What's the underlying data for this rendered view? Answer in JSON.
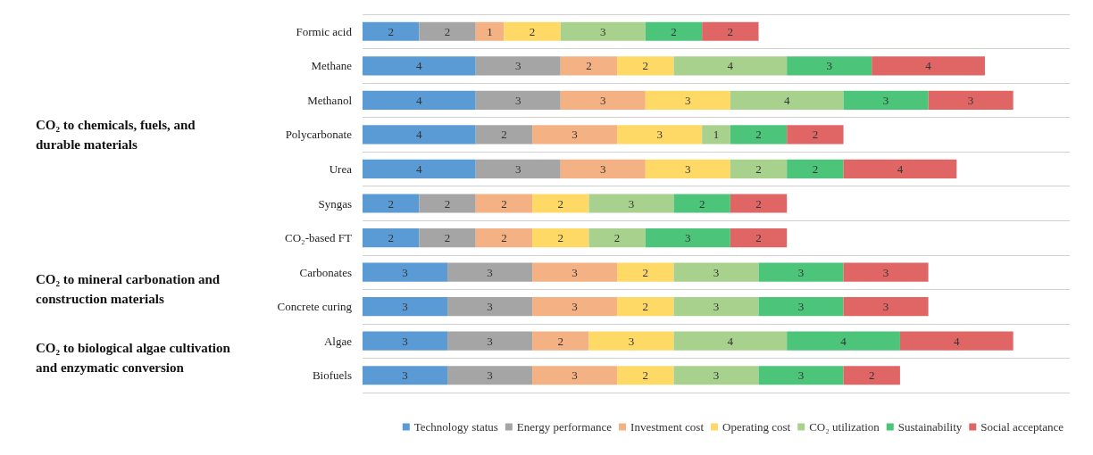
{
  "chart_data": {
    "type": "bar",
    "orientation": "horizontal",
    "stacked": true,
    "data_labels": true,
    "tick_labels": "y",
    "grid": "y",
    "legend": "bottom",
    "categories": [
      "Formic acid",
      "Methane",
      "Methanol",
      "Polycarbonate",
      "Urea",
      "Syngas",
      "CO₂-based FT",
      "Carbonates",
      "Concrete curing",
      "Algae",
      "Biofuels"
    ],
    "series": [
      {
        "name": "Technology status",
        "color": "#5b9bd5",
        "values": [
          2,
          4,
          4,
          4,
          4,
          2,
          2,
          3,
          3,
          3,
          3
        ]
      },
      {
        "name": "Energy performance",
        "color": "#a5a5a5",
        "values": [
          2,
          3,
          3,
          2,
          3,
          2,
          2,
          3,
          3,
          3,
          3
        ]
      },
      {
        "name": "Investment cost",
        "color": "#f4b183",
        "values": [
          1,
          2,
          3,
          3,
          3,
          2,
          2,
          3,
          3,
          2,
          3
        ]
      },
      {
        "name": "Operating cost",
        "color": "#ffd966",
        "values": [
          2,
          2,
          3,
          3,
          3,
          2,
          2,
          2,
          2,
          3,
          2
        ]
      },
      {
        "name": "CO₂ utilization",
        "color": "#a9d18e",
        "values": [
          3,
          4,
          4,
          1,
          2,
          3,
          2,
          3,
          3,
          4,
          3
        ]
      },
      {
        "name": "Sustainability",
        "color": "#4cc47a",
        "values": [
          2,
          3,
          3,
          2,
          2,
          2,
          3,
          3,
          3,
          4,
          3
        ]
      },
      {
        "name": "Social acceptance",
        "color": "#e06666",
        "values": [
          2,
          4,
          3,
          2,
          4,
          2,
          2,
          3,
          3,
          4,
          2
        ]
      }
    ],
    "annotations": [
      "CO₂ to chemicals, fuels, and durable materials",
      "CO₂ to mineral carbonation and construction materials",
      "CO₂ to biological algae cultivation and enzymatic conversion"
    ]
  }
}
